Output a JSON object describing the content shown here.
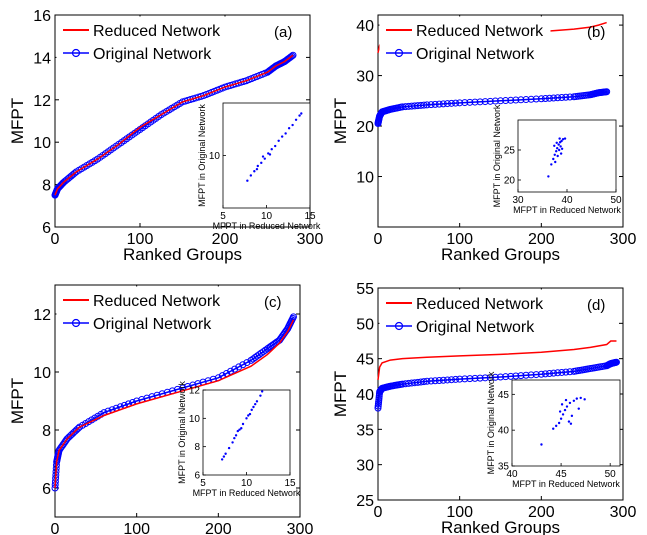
{
  "colors": {
    "reduced": "#ff0000",
    "original": "#0000ff",
    "axis": "#000000"
  },
  "chart_data": [
    {
      "type": "line",
      "panel_label": "(a)",
      "xlabel": "Ranked Groups",
      "ylabel": "MFPT",
      "xlim": [
        0,
        300
      ],
      "ylim": [
        6,
        16
      ],
      "xticks": [
        "0",
        "100",
        "200",
        "300"
      ],
      "yticks": [
        "6",
        "8",
        "10",
        "12",
        "14",
        "16"
      ],
      "legend": [
        "Reduced Network",
        "Original Network"
      ],
      "series": [
        {
          "name": "Reduced Network",
          "x": [
            0,
            3,
            10,
            25,
            50,
            75,
            100,
            125,
            150,
            175,
            200,
            225,
            250,
            260,
            270,
            280
          ],
          "y": [
            7.5,
            7.8,
            8.1,
            8.6,
            9.2,
            9.9,
            10.7,
            11.3,
            11.9,
            12.2,
            12.6,
            12.9,
            13.3,
            13.6,
            13.8,
            14.1
          ]
        },
        {
          "name": "Original Network",
          "x": [
            0,
            3,
            10,
            25,
            50,
            75,
            100,
            125,
            150,
            175,
            200,
            225,
            250,
            260,
            270,
            280
          ],
          "y": [
            7.5,
            7.8,
            8.1,
            8.6,
            9.2,
            9.9,
            10.6,
            11.3,
            11.9,
            12.2,
            12.6,
            12.9,
            13.3,
            13.6,
            13.8,
            14.1
          ]
        }
      ],
      "inset": {
        "xlabel": "MFPT in Reduced Network",
        "ylabel": "MFPT in Original Network",
        "xlim": [
          5,
          15
        ],
        "ylim": [
          5,
          15
        ],
        "xticks": [
          "5",
          "10",
          "15"
        ],
        "yticks": [
          "10"
        ],
        "points": [
          [
            7.8,
            7.6
          ],
          [
            8.2,
            8.1
          ],
          [
            8.6,
            8.5
          ],
          [
            9.0,
            9.0
          ],
          [
            9.4,
            9.3
          ],
          [
            9.8,
            9.7
          ],
          [
            10.2,
            10.2
          ],
          [
            10.6,
            10.6
          ],
          [
            11.0,
            10.9
          ],
          [
            11.4,
            11.4
          ],
          [
            11.8,
            11.8
          ],
          [
            12.2,
            12.1
          ],
          [
            12.6,
            12.6
          ],
          [
            13.0,
            12.9
          ],
          [
            13.4,
            13.4
          ],
          [
            13.8,
            13.8
          ],
          [
            14.0,
            14.0
          ],
          [
            9.6,
            9.9
          ],
          [
            10.4,
            10.1
          ],
          [
            8.9,
            8.7
          ]
        ]
      }
    },
    {
      "type": "line",
      "panel_label": "(b)",
      "xlabel": "Ranked Groups",
      "ylabel": "MFPT",
      "xlim": [
        0,
        300
      ],
      "ylim": [
        0,
        42
      ],
      "xticks": [
        "0",
        "100",
        "200",
        "300"
      ],
      "yticks": [
        "10",
        "20",
        "30",
        "40"
      ],
      "legend": [
        "Reduced Network",
        "Original Network"
      ],
      "series": [
        {
          "name": "Reduced Network",
          "x": [
            0,
            2,
            5,
            15,
            30,
            60,
            100,
            150,
            200,
            240,
            260,
            270,
            280
          ],
          "y": [
            34.5,
            36,
            36.8,
            37.2,
            37.5,
            37.8,
            38,
            38.3,
            38.7,
            39.2,
            39.6,
            40,
            40.5
          ]
        },
        {
          "name": "Original Network",
          "x": [
            0,
            2,
            5,
            15,
            30,
            60,
            100,
            150,
            200,
            240,
            260,
            270,
            280
          ],
          "y": [
            20.5,
            22,
            22.8,
            23.3,
            23.8,
            24.2,
            24.6,
            25,
            25.4,
            25.8,
            26.2,
            26.6,
            26.8
          ]
        }
      ],
      "inset": {
        "xlabel": "MFPT in Reduced Network",
        "ylabel": "MFPT in Original Network",
        "xlim": [
          30,
          50
        ],
        "ylim": [
          18,
          30
        ],
        "xticks": [
          "30",
          "40",
          "50"
        ],
        "yticks": [
          "20",
          "25"
        ],
        "points": [
          [
            37.2,
            23.5
          ],
          [
            37.5,
            24.2
          ],
          [
            37.8,
            24.8
          ],
          [
            38.0,
            25.3
          ],
          [
            38.3,
            25.9
          ],
          [
            38.6,
            26.3
          ],
          [
            38.9,
            26.5
          ],
          [
            39.2,
            26.8
          ],
          [
            37.6,
            23.0
          ],
          [
            38.1,
            24.0
          ],
          [
            38.4,
            25.0
          ],
          [
            38.7,
            25.6
          ],
          [
            37.9,
            26.2
          ],
          [
            38.5,
            26.9
          ],
          [
            36.8,
            22.6
          ],
          [
            39.0,
            25.2
          ],
          [
            37.4,
            25.7
          ],
          [
            38.8,
            24.4
          ],
          [
            36.2,
            20.6
          ],
          [
            39.6,
            26.9
          ]
        ]
      }
    },
    {
      "type": "line",
      "panel_label": "(c)",
      "xlabel": "Ranked Groups",
      "ylabel": "MFPT",
      "xlim": [
        0,
        300
      ],
      "ylim": [
        5,
        13
      ],
      "xticks": [
        "0",
        "100",
        "200",
        "300"
      ],
      "yticks": [
        "6",
        "8",
        "10",
        "12"
      ],
      "legend": [
        "Reduced Network",
        "Original Network"
      ],
      "series": [
        {
          "name": "Reduced Network",
          "x": [
            0,
            2,
            5,
            15,
            30,
            60,
            100,
            150,
            200,
            240,
            260,
            275,
            285,
            292
          ],
          "y": [
            6.0,
            6.9,
            7.3,
            7.7,
            8.1,
            8.5,
            8.9,
            9.3,
            9.7,
            10.2,
            10.6,
            11.0,
            11.4,
            11.8
          ]
        },
        {
          "name": "Original Network",
          "x": [
            0,
            2,
            5,
            15,
            30,
            60,
            100,
            150,
            200,
            240,
            260,
            275,
            285,
            292
          ],
          "y": [
            6.0,
            6.9,
            7.3,
            7.7,
            8.1,
            8.6,
            9.0,
            9.4,
            9.8,
            10.4,
            10.8,
            11.1,
            11.5,
            11.9
          ]
        }
      ],
      "inset": {
        "xlabel": "MFPT in Reduced Network",
        "ylabel": "MFPT in Original Network",
        "xlim": [
          5,
          15
        ],
        "ylim": [
          6,
          12
        ],
        "xticks": [
          "5",
          "10",
          "15"
        ],
        "yticks": [
          "6",
          "8",
          "10",
          "12"
        ],
        "points": [
          [
            7.2,
            7.1
          ],
          [
            7.6,
            7.5
          ],
          [
            8.0,
            7.9
          ],
          [
            8.4,
            8.3
          ],
          [
            8.8,
            8.8
          ],
          [
            9.2,
            9.2
          ],
          [
            9.6,
            9.6
          ],
          [
            10.0,
            10.0
          ],
          [
            10.4,
            10.3
          ],
          [
            10.8,
            10.8
          ],
          [
            11.2,
            11.2
          ],
          [
            11.6,
            11.6
          ],
          [
            11.8,
            11.9
          ],
          [
            9.0,
            9.1
          ],
          [
            9.4,
            9.3
          ],
          [
            10.2,
            10.2
          ],
          [
            8.6,
            8.6
          ],
          [
            7.4,
            7.3
          ],
          [
            10.6,
            10.6
          ],
          [
            11.0,
            11.0
          ]
        ]
      }
    },
    {
      "type": "line",
      "panel_label": "(d)",
      "xlabel": "Ranked Groups",
      "ylabel": "MFPT",
      "xlim": [
        0,
        300
      ],
      "ylim": [
        25,
        55
      ],
      "xticks": [
        "0",
        "100",
        "200",
        "300"
      ],
      "yticks": [
        "25",
        "30",
        "35",
        "40",
        "45",
        "50",
        "55"
      ],
      "legend": [
        "Reduced Network",
        "Original Network"
      ],
      "series": [
        {
          "name": "Reduced Network",
          "x": [
            0,
            2,
            5,
            15,
            30,
            60,
            100,
            150,
            200,
            240,
            260,
            280,
            285,
            292
          ],
          "y": [
            42.0,
            43.8,
            44.4,
            44.8,
            45.0,
            45.2,
            45.4,
            45.6,
            45.9,
            46.3,
            46.6,
            47.0,
            47.5,
            47.5
          ]
        },
        {
          "name": "Original Network",
          "x": [
            0,
            2,
            5,
            15,
            30,
            60,
            100,
            150,
            200,
            240,
            260,
            280,
            285,
            292
          ],
          "y": [
            38.0,
            40.3,
            40.8,
            41.1,
            41.4,
            41.8,
            42.1,
            42.4,
            42.8,
            43.2,
            43.6,
            44.0,
            44.3,
            44.5
          ]
        }
      ],
      "inset": {
        "xlabel": "MFPT in Reduced Network",
        "ylabel": "MFPT in Original Network",
        "xlim": [
          40,
          51
        ],
        "ylim": [
          35,
          47
        ],
        "xticks": [
          "40",
          "45",
          "50"
        ],
        "yticks": [
          "35",
          "40",
          "45"
        ],
        "points": [
          [
            44.8,
            41.0
          ],
          [
            45.0,
            41.6
          ],
          [
            45.2,
            42.2
          ],
          [
            45.4,
            42.8
          ],
          [
            45.6,
            43.3
          ],
          [
            45.9,
            43.8
          ],
          [
            46.3,
            44.1
          ],
          [
            46.6,
            44.4
          ],
          [
            47.0,
            44.5
          ],
          [
            44.5,
            40.6
          ],
          [
            45.8,
            41.2
          ],
          [
            45.1,
            43.6
          ],
          [
            46.1,
            42.0
          ],
          [
            44.9,
            42.6
          ],
          [
            47.4,
            44.3
          ],
          [
            43.0,
            38.0
          ],
          [
            44.2,
            40.2
          ],
          [
            46.8,
            43.0
          ],
          [
            45.5,
            44.2
          ],
          [
            46.0,
            40.9
          ]
        ]
      }
    }
  ]
}
